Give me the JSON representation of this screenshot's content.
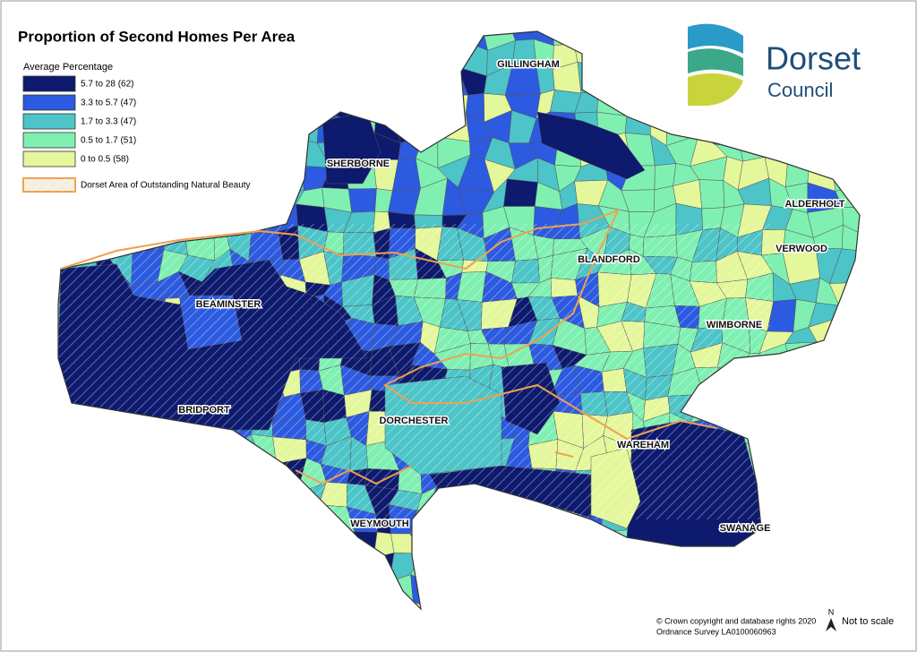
{
  "title": "Proportion of Second Homes Per Area",
  "legend": {
    "title": "Average Percentage",
    "items": [
      {
        "label": "5.7  to  28   (62)",
        "color": "#0d1a6e"
      },
      {
        "label": "3.3  to  5.7  (47)",
        "color": "#2c5ae0"
      },
      {
        "label": "1.7  to  3.3  (47)",
        "color": "#4cc4c8"
      },
      {
        "label": "0.5  to  1.7  (51)",
        "color": "#7ff0b2"
      },
      {
        "label": "0    to  0.5  (58)",
        "color": "#e4f79a"
      }
    ],
    "aonb": {
      "label": "Dorset Area of Outstanding Natural Beauty",
      "color": "#f0a050"
    }
  },
  "places": [
    "GILLINGHAM",
    "SHERBORNE",
    "ALDERHOLT",
    "VERWOOD",
    "BLANDFORD",
    "BEAMINSTER",
    "WIMBORNE",
    "BRIDPORT",
    "DORCHESTER",
    "WAREHAM",
    "WEYMOUTH",
    "SWANAGE"
  ],
  "logo": {
    "name": "Dorset",
    "subtitle": "Council"
  },
  "copyright": [
    "© Crown copyright and database rights 2020",
    "Ordnance Survey LA0100060963"
  ],
  "north": "N",
  "scale_note": "Not to scale"
}
